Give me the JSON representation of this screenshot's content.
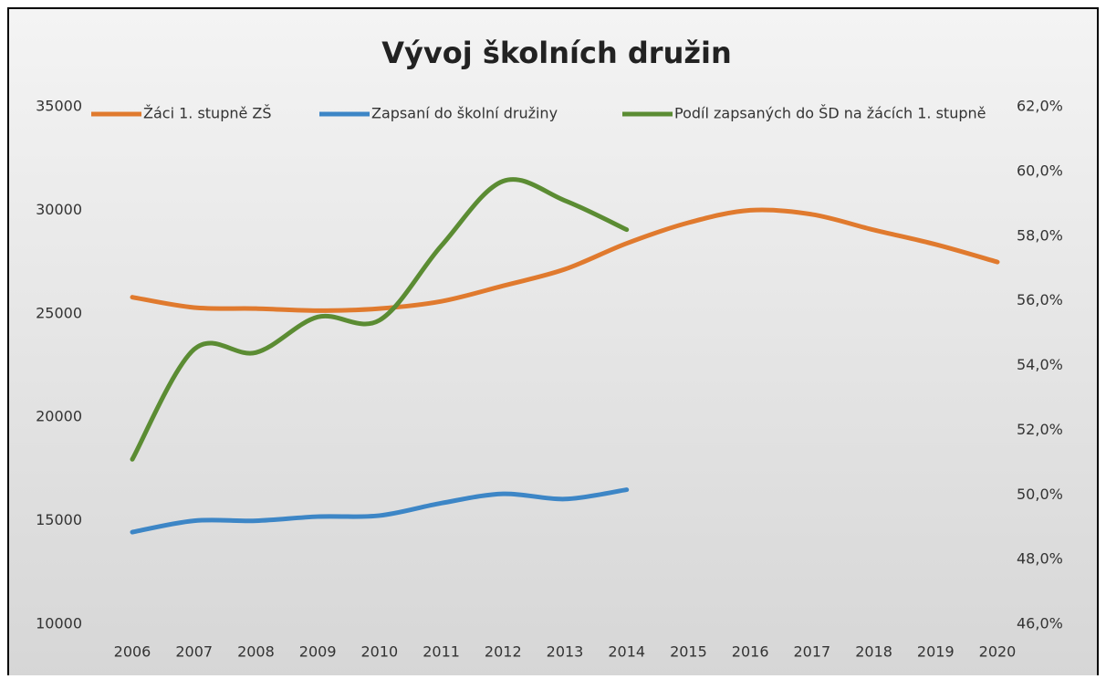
{
  "chart_data": {
    "type": "line",
    "title": "Vývoj školních družin",
    "categories": [
      "2006",
      "2007",
      "2008",
      "2009",
      "2010",
      "2011",
      "2012",
      "2013",
      "2014",
      "2015",
      "2016",
      "2017",
      "2018",
      "2019",
      "2020"
    ],
    "series": [
      {
        "name": "Žáci 1. stupně ZŠ",
        "color": "#e07a2e",
        "values": [
          25800,
          25300,
          25250,
          25150,
          25250,
          25600,
          26350,
          27150,
          28400,
          29400,
          30000,
          29800,
          29050,
          28350,
          27500
        ]
      },
      {
        "name": "Zapsaní do školní družiny",
        "color": "#3d86c6",
        "values": [
          14450,
          15000,
          15000,
          15200,
          15250,
          15850,
          16300,
          16050,
          16500,
          null,
          null,
          null,
          null,
          null,
          null
        ]
      },
      {
        "name": "Podíl zapsaných do ŠD na žácích 1. stupně",
        "color": "#5b8c33",
        "axis": "y2",
        "values": [
          51.1,
          54.5,
          54.4,
          55.5,
          55.4,
          57.7,
          59.7,
          59.1,
          58.2,
          null,
          null,
          null,
          null,
          null,
          null
        ]
      }
    ],
    "ylim": [
      10000,
      35000
    ],
    "yticks": [
      10000,
      15000,
      20000,
      25000,
      30000,
      35000
    ],
    "y2lim": [
      46,
      62
    ],
    "y2ticks": [
      {
        "value": 46,
        "label": "46,0%"
      },
      {
        "value": 48,
        "label": "48,0%"
      },
      {
        "value": 50,
        "label": "50,0%"
      },
      {
        "value": 52,
        "label": "52,0%"
      },
      {
        "value": 54,
        "label": "54,0%"
      },
      {
        "value": 56,
        "label": "56,0%"
      },
      {
        "value": 58,
        "label": "58,0%"
      },
      {
        "value": 60,
        "label": "60,0%"
      },
      {
        "value": 62,
        "label": "62,0%"
      }
    ],
    "grid": false,
    "legend": "top"
  }
}
